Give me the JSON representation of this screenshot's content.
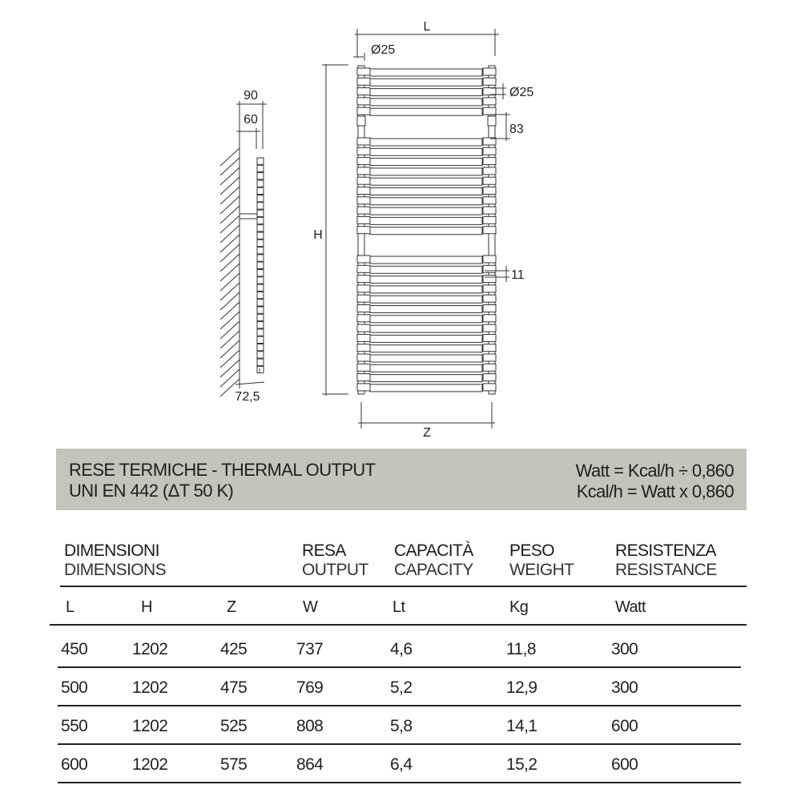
{
  "drawing": {
    "labels": {
      "L": "L",
      "H": "H",
      "Z": "Z",
      "dia_top": "Ø25",
      "dia_side": "Ø25",
      "gap": "83",
      "pitch": "11",
      "depth_total": "90",
      "depth_bracket": "60",
      "wall_offset": "72,5"
    },
    "bar_groups": [
      5,
      10,
      14
    ]
  },
  "banner": {
    "title": "RESE TERMICHE - THERMAL OUTPUT",
    "standard": "UNI EN 442 (ΔT 50 K)",
    "formula1": "Watt = Kcal/h ÷ 0,860",
    "formula2": "Kcal/h = Watt x 0,860",
    "color": "#c5c4bb"
  },
  "table": {
    "headers": [
      {
        "it": "DIMENSIONI",
        "en": "DIMENSIONS"
      },
      {
        "it": "RESA",
        "en": "OUTPUT"
      },
      {
        "it": "CAPACITÀ",
        "en": "CAPACITY"
      },
      {
        "it": "PESO",
        "en": "WEIGHT"
      },
      {
        "it": "RESISTENZA",
        "en": "RESISTANCE"
      }
    ],
    "units": [
      "L",
      "H",
      "Z",
      "W",
      "Lt",
      "Kg",
      "Watt"
    ],
    "rows": [
      [
        "450",
        "1202",
        "425",
        "737",
        "4,6",
        "11,8",
        "300"
      ],
      [
        "500",
        "1202",
        "475",
        "769",
        "5,2",
        "12,9",
        "300"
      ],
      [
        "550",
        "1202",
        "525",
        "808",
        "5,8",
        "14,1",
        "600"
      ],
      [
        "600",
        "1202",
        "575",
        "864",
        "6,4",
        "15,2",
        "600"
      ]
    ]
  }
}
